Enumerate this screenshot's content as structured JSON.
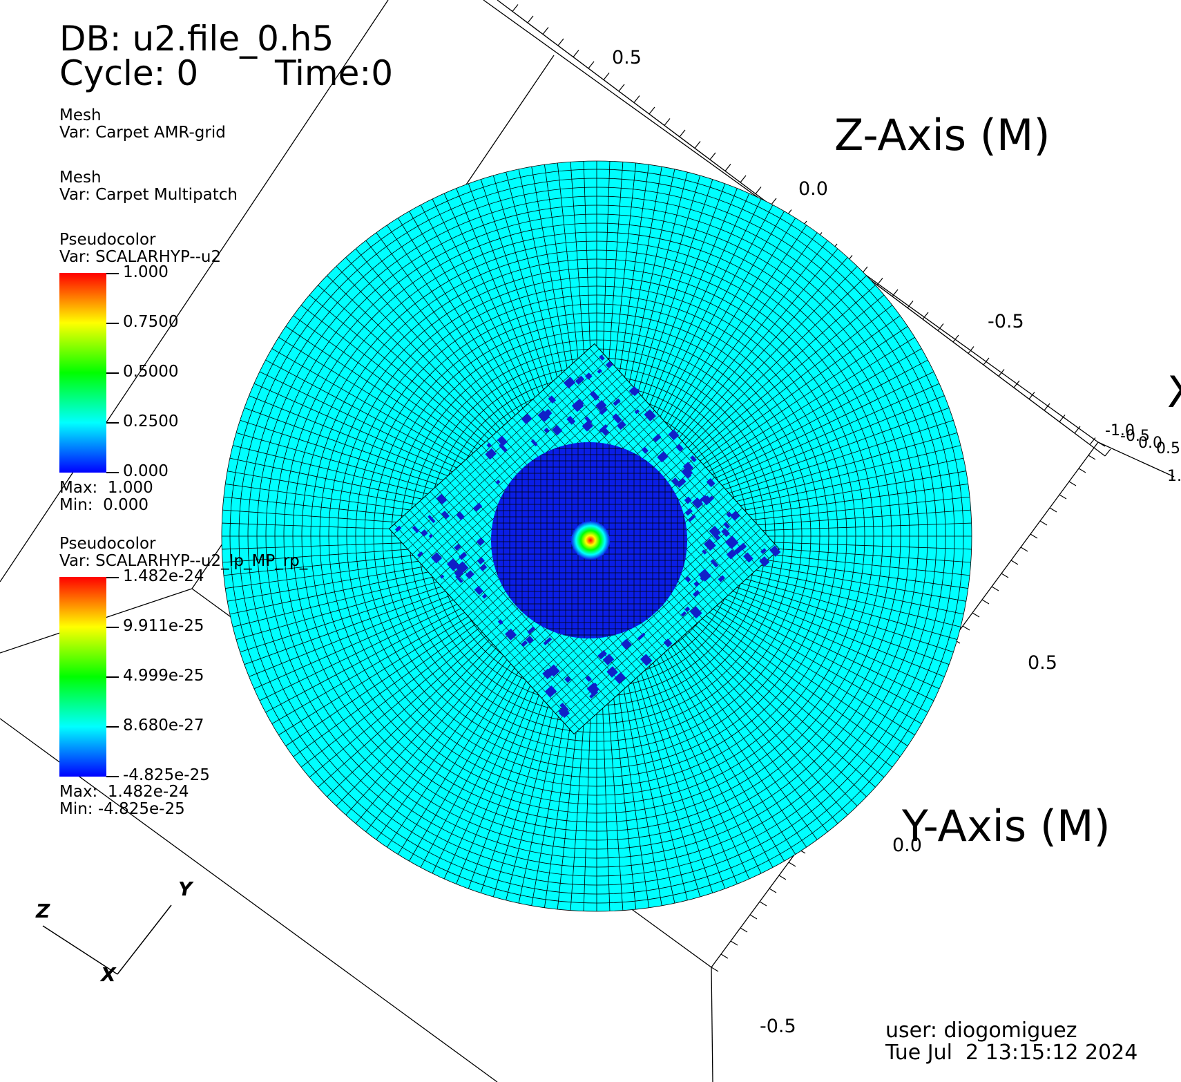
{
  "header": {
    "db_line": "DB: u2.file_0.h5",
    "cycle_line": "Cycle: 0",
    "time_line": "Time:0"
  },
  "legend": {
    "mesh1": {
      "title": "Mesh",
      "var": "Var: Carpet AMR-grid"
    },
    "mesh2": {
      "title": "Mesh",
      "var": "Var: Carpet Multipatch"
    },
    "pc1": {
      "title": "Pseudocolor",
      "var": "Var: SCALARHYP--u2",
      "ticks": [
        "1.000",
        "0.7500",
        "0.5000",
        "0.2500",
        "0.000"
      ],
      "max": "Max:  1.000",
      "min": "Min:  0.000"
    },
    "pc2": {
      "title": "Pseudocolor",
      "var": "Var: SCALARHYP--u2_Ip_MP_rp_",
      "ticks": [
        "1.482e-24",
        "9.911e-25",
        "4.999e-25",
        "8.680e-27",
        "-4.825e-25"
      ],
      "max": "Max:  1.482e-24",
      "min": "Min: -4.825e-25"
    }
  },
  "axes": {
    "z_title": "Z-Axis (M)",
    "y_title": "Y-Axis (M)",
    "x_title": "X",
    "z_ticks": [
      "0.5",
      "0.0",
      "-0.5"
    ],
    "y_ticks": [
      "0.5",
      "0.0",
      "-0.5"
    ],
    "x_ticks": [
      "-1.0",
      "-0.5",
      "0.0",
      "0.5",
      "1."
    ]
  },
  "triad": {
    "x": "X",
    "y": "Y",
    "z": "Z"
  },
  "footer": {
    "user": "user: diogomiguez",
    "date": "Tue Jul  2 13:15:12 2024"
  },
  "colors": {
    "outer_field": "#00ffff",
    "inner_field": "#0a1ee6",
    "patch_dark": "#1020c8",
    "grid_line": "#000000"
  }
}
